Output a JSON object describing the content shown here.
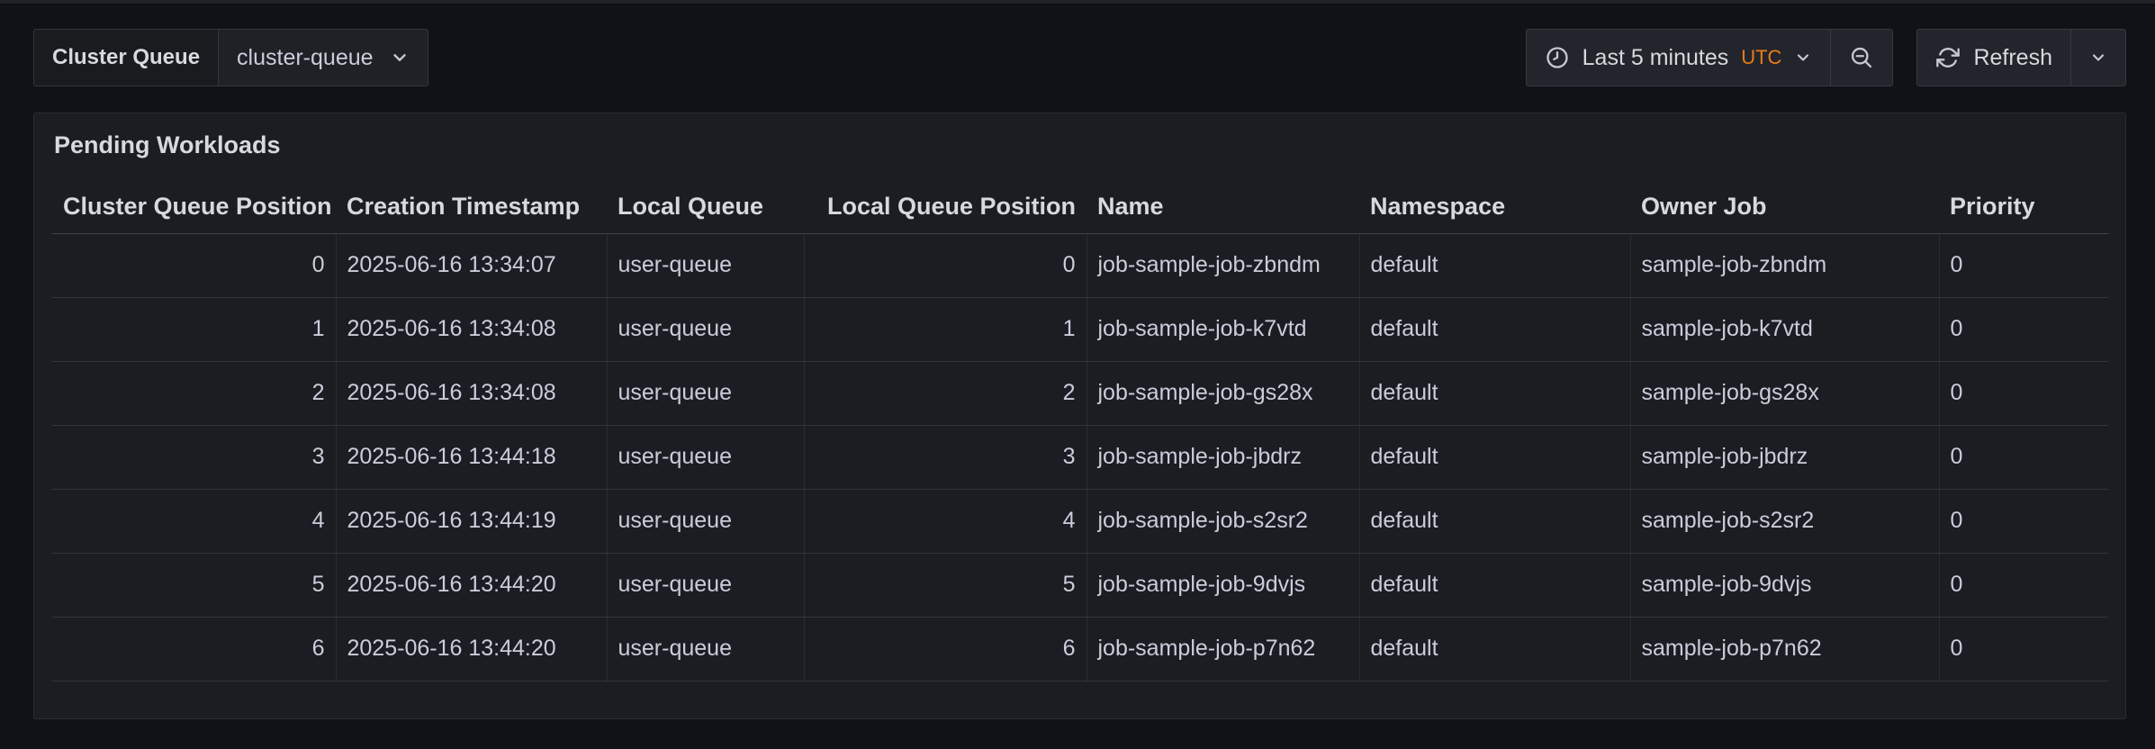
{
  "toolbar": {
    "variable": {
      "label": "Cluster Queue",
      "value": "cluster-queue"
    },
    "time_picker": {
      "label": "Last 5 minutes",
      "timezone": "UTC"
    },
    "refresh": {
      "label": "Refresh"
    }
  },
  "icons": {
    "time_picker": "clock-icon",
    "zoom_out": "zoom-out-icon",
    "refresh": "sync-icon",
    "dropdowns": "chevron-down-icon"
  },
  "colors": {
    "page_bg": "#111217",
    "panel_bg": "#1b1d22",
    "text": "#ccccdc",
    "accent_orange": "#eb7b18"
  },
  "panel": {
    "title": "Pending Workloads",
    "table": {
      "columns": [
        {
          "label": "Cluster Queue Position",
          "align": "right"
        },
        {
          "label": "Creation Timestamp",
          "align": "left"
        },
        {
          "label": "Local Queue",
          "align": "left"
        },
        {
          "label": "Local Queue Position",
          "align": "right"
        },
        {
          "label": "Name",
          "align": "left"
        },
        {
          "label": "Namespace",
          "align": "left"
        },
        {
          "label": "Owner Job",
          "align": "left"
        },
        {
          "label": "Priority",
          "align": "left"
        }
      ],
      "rows": [
        [
          0,
          "2025-06-16 13:34:07",
          "user-queue",
          0,
          "job-sample-job-zbndm",
          "default",
          "sample-job-zbndm",
          0
        ],
        [
          1,
          "2025-06-16 13:34:08",
          "user-queue",
          1,
          "job-sample-job-k7vtd",
          "default",
          "sample-job-k7vtd",
          0
        ],
        [
          2,
          "2025-06-16 13:34:08",
          "user-queue",
          2,
          "job-sample-job-gs28x",
          "default",
          "sample-job-gs28x",
          0
        ],
        [
          3,
          "2025-06-16 13:44:18",
          "user-queue",
          3,
          "job-sample-job-jbdrz",
          "default",
          "sample-job-jbdrz",
          0
        ],
        [
          4,
          "2025-06-16 13:44:19",
          "user-queue",
          4,
          "job-sample-job-s2sr2",
          "default",
          "sample-job-s2sr2",
          0
        ],
        [
          5,
          "2025-06-16 13:44:20",
          "user-queue",
          5,
          "job-sample-job-9dvjs",
          "default",
          "sample-job-9dvjs",
          0
        ],
        [
          6,
          "2025-06-16 13:44:20",
          "user-queue",
          6,
          "job-sample-job-p7n62",
          "default",
          "sample-job-p7n62",
          0
        ]
      ]
    }
  }
}
